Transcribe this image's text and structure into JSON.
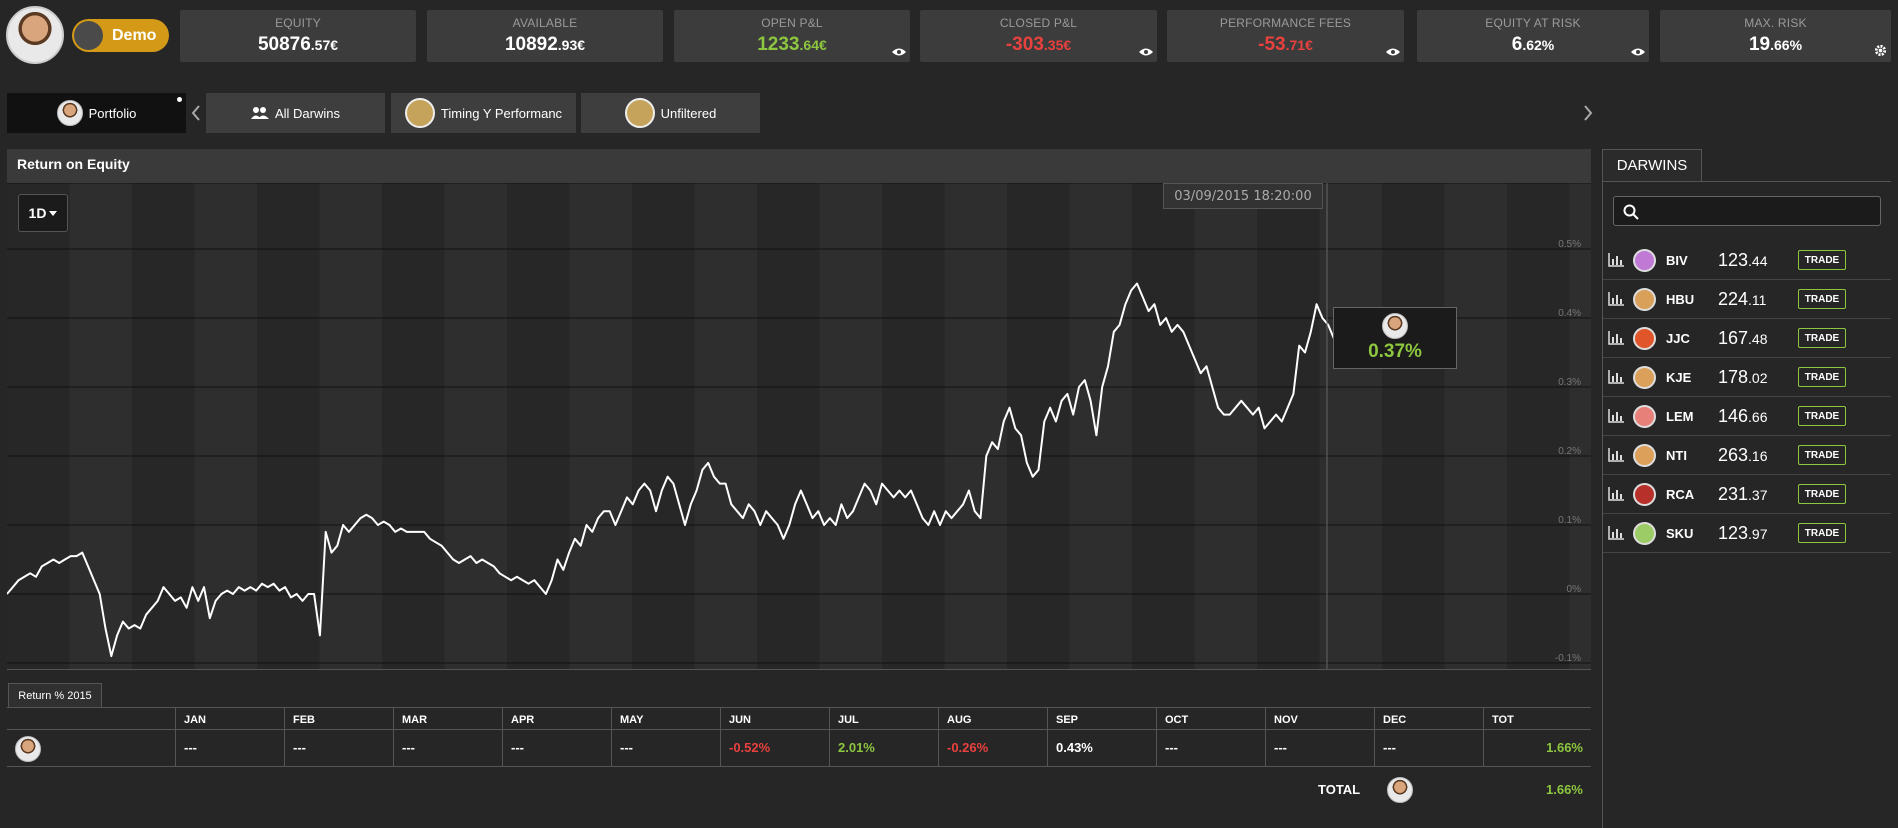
{
  "account": {
    "mode_label": "Demo"
  },
  "stats": [
    {
      "label": "EQUITY",
      "main": "50876",
      "decimals": ".57€",
      "tone": "white",
      "icon": ""
    },
    {
      "label": "AVAILABLE",
      "main": "10892",
      "decimals": ".93€",
      "tone": "white",
      "icon": ""
    },
    {
      "label": "OPEN P&L",
      "main": "1233",
      "decimals": ".64€",
      "tone": "green",
      "icon": "eye-icon"
    },
    {
      "label": "CLOSED P&L",
      "main": "-303",
      "decimals": ".35€",
      "tone": "red",
      "icon": "eye-icon"
    },
    {
      "label": "PERFORMANCE FEES",
      "main": "-53",
      "decimals": ".71€",
      "tone": "red",
      "icon": "eye-icon"
    },
    {
      "label": "EQUITY AT RISK",
      "main": "6",
      "decimals": ".62%",
      "tone": "white",
      "icon": "eye-icon"
    },
    {
      "label": "MAX. RISK",
      "main": "19",
      "decimals": ".66%",
      "tone": "white",
      "icon": "gear-icon"
    }
  ],
  "tabs": [
    {
      "label": "Portfolio",
      "active": true
    },
    {
      "label": "All Darwins",
      "active": false
    },
    {
      "label": "Timing Y Performanc",
      "active": false
    },
    {
      "label": "Unfiltered",
      "active": false
    }
  ],
  "chart": {
    "title": "Return on Equity",
    "range_label": "1D",
    "tooltip_date": "03/09/2015 18:20:00",
    "tooltip_value": "0.37%"
  },
  "chart_data": {
    "type": "line",
    "title": "Return on Equity",
    "xlabel": "",
    "ylabel": "",
    "yticks": [
      "0.5%",
      "0.4%",
      "0.3%",
      "0.2%",
      "0.1%",
      "0%",
      "-0.1%"
    ],
    "ylim": [
      -0.1,
      0.5
    ],
    "grid": true,
    "series": [
      {
        "values": [
          0.0,
          0.01,
          0.02,
          0.025,
          0.03,
          0.025,
          0.04,
          0.045,
          0.05,
          0.045,
          0.05,
          0.055,
          0.055,
          0.06,
          0.04,
          0.02,
          0.0,
          -0.05,
          -0.09,
          -0.06,
          -0.04,
          -0.05,
          -0.045,
          -0.05,
          -0.03,
          -0.02,
          -0.01,
          0.01,
          0.0,
          -0.01,
          -0.005,
          -0.02,
          0.01,
          -0.01,
          0.01,
          -0.035,
          -0.01,
          0.0,
          0.005,
          0.0,
          0.01,
          0.005,
          0.01,
          0.005,
          0.015,
          0.01,
          0.015,
          0.005,
          0.01,
          -0.005,
          0.0,
          -0.01,
          0.0,
          0.0,
          -0.06,
          0.09,
          0.06,
          0.07,
          0.1,
          0.09,
          0.1,
          0.11,
          0.115,
          0.11,
          0.1,
          0.105,
          0.1,
          0.09,
          0.095,
          0.09,
          0.09,
          0.09,
          0.09,
          0.08,
          0.075,
          0.07,
          0.06,
          0.05,
          0.045,
          0.05,
          0.055,
          0.045,
          0.05,
          0.045,
          0.04,
          0.03,
          0.025,
          0.02,
          0.025,
          0.02,
          0.015,
          0.02,
          0.01,
          0.0,
          0.02,
          0.05,
          0.035,
          0.06,
          0.08,
          0.07,
          0.1,
          0.09,
          0.11,
          0.12,
          0.12,
          0.1,
          0.12,
          0.14,
          0.13,
          0.15,
          0.16,
          0.15,
          0.12,
          0.15,
          0.17,
          0.16,
          0.13,
          0.1,
          0.13,
          0.15,
          0.18,
          0.19,
          0.17,
          0.16,
          0.16,
          0.13,
          0.12,
          0.11,
          0.13,
          0.12,
          0.1,
          0.12,
          0.11,
          0.1,
          0.08,
          0.1,
          0.13,
          0.15,
          0.13,
          0.11,
          0.12,
          0.1,
          0.11,
          0.1,
          0.13,
          0.11,
          0.12,
          0.14,
          0.16,
          0.15,
          0.13,
          0.16,
          0.15,
          0.14,
          0.15,
          0.14,
          0.15,
          0.13,
          0.11,
          0.1,
          0.12,
          0.1,
          0.12,
          0.11,
          0.12,
          0.13,
          0.15,
          0.12,
          0.11,
          0.2,
          0.22,
          0.21,
          0.25,
          0.27,
          0.24,
          0.23,
          0.19,
          0.17,
          0.18,
          0.25,
          0.27,
          0.25,
          0.28,
          0.29,
          0.26,
          0.3,
          0.31,
          0.28,
          0.23,
          0.3,
          0.33,
          0.38,
          0.39,
          0.42,
          0.44,
          0.45,
          0.43,
          0.41,
          0.42,
          0.39,
          0.4,
          0.38,
          0.39,
          0.38,
          0.36,
          0.34,
          0.32,
          0.33,
          0.3,
          0.27,
          0.26,
          0.26,
          0.27,
          0.28,
          0.27,
          0.26,
          0.27,
          0.24,
          0.25,
          0.26,
          0.25,
          0.27,
          0.29,
          0.36,
          0.35,
          0.38,
          0.42,
          0.4,
          0.39,
          0.37
        ]
      }
    ]
  },
  "returns": {
    "tab_label": "Return % 2015",
    "headers": [
      "",
      "JAN",
      "FEB",
      "MAR",
      "APR",
      "MAY",
      "JUN",
      "JUL",
      "AUG",
      "SEP",
      "OCT",
      "NOV",
      "DEC",
      "TOT"
    ],
    "row": [
      "---",
      "---",
      "---",
      "---",
      "---",
      "-0.52%",
      "2.01%",
      "-0.26%",
      "0.43%",
      "---",
      "---",
      "---",
      "1.66%"
    ],
    "row_tones": [
      "white",
      "white",
      "white",
      "white",
      "white",
      "red",
      "green",
      "red",
      "white",
      "white",
      "white",
      "white",
      "green"
    ],
    "total_label": "TOTAL",
    "total_value": "1.66%"
  },
  "darwins": {
    "tab_label": "DARWINS",
    "search_placeholder": "",
    "trade_label": "TRADE",
    "items": [
      {
        "name": "BIV",
        "main": "123",
        "decimals": ".44",
        "color": "#c07ad6"
      },
      {
        "name": "HBU",
        "main": "224",
        "decimals": ".11",
        "color": "#d9a05a"
      },
      {
        "name": "JJC",
        "main": "167",
        "decimals": ".48",
        "color": "#e0552a"
      },
      {
        "name": "KJE",
        "main": "178",
        "decimals": ".02",
        "color": "#dba05a"
      },
      {
        "name": "LEM",
        "main": "146",
        "decimals": ".66",
        "color": "#e8807a"
      },
      {
        "name": "NTI",
        "main": "263",
        "decimals": ".16",
        "color": "#dca05a"
      },
      {
        "name": "RCA",
        "main": "231",
        "decimals": ".37",
        "color": "#b8302a"
      },
      {
        "name": "SKU",
        "main": "123",
        "decimals": ".97",
        "color": "#9ccc66"
      }
    ]
  }
}
